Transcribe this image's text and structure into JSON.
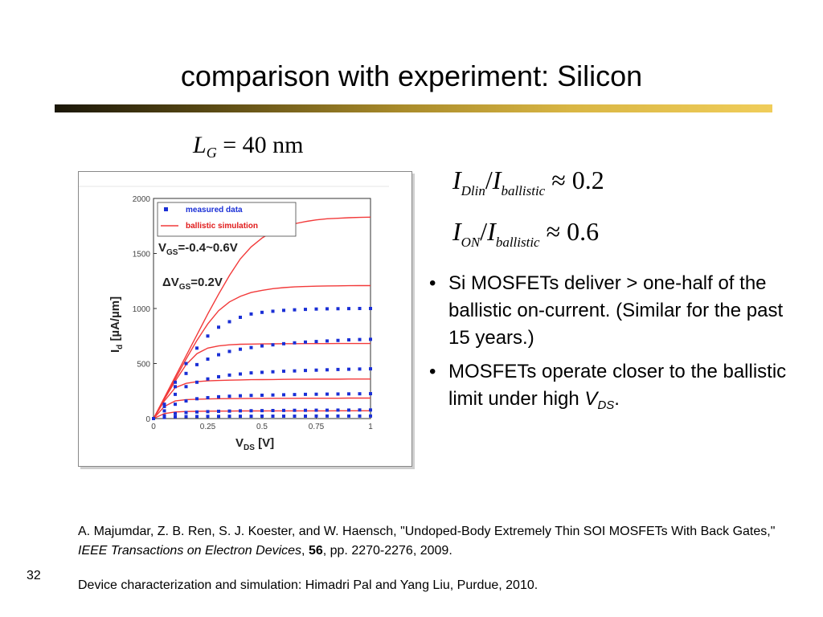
{
  "slide": {
    "title": "comparison with experiment: Silicon",
    "number": "32",
    "colors": {
      "title_bar_dark": "#1a1608",
      "title_bar_light": "#f0cd5a"
    }
  },
  "gate_length": {
    "symbol": "L",
    "subscript": "G",
    "equals": "=",
    "value": "40 nm"
  },
  "ratios": [
    {
      "num": "I",
      "num_sub": "Dlin",
      "slash": "/",
      "den": "I",
      "den_sub": "ballistic",
      "approx": "≈ 0.2"
    },
    {
      "num": "I",
      "num_sub": "ON",
      "slash": "/",
      "den": "I",
      "den_sub": "ballistic",
      "approx": "≈ 0.6"
    }
  ],
  "bullets": [
    {
      "marker": "•",
      "text": "Si MOSFETs deliver > one-half of the ballistic on-current. (Similar for the past 15 years.)"
    },
    {
      "marker": "•",
      "text": "MOSFETs operate closer to the ballistic limit under high ",
      "var": "V",
      "sub": "DS",
      "tail": "."
    }
  ],
  "reference": {
    "part1": "A. Majumdar, Z. B. Ren, S. J. Koester, and W. Haensch, \"Undoped-Body Extremely Thin SOI MOSFETs With Back Gates,\" ",
    "journal": "IEEE Transactions on Electron Devices",
    "sep": ", ",
    "volume": "56",
    "part2": ", pp. 2270-2276, 2009."
  },
  "credit": "Device characterization and simulation:  Himadri Pal and Yang Liu, Purdue, 2010.",
  "chart_data": {
    "type": "line",
    "xlabel": "V",
    "xlabel_sub": "DS",
    "xlabel_unit": " [V]",
    "ylabel": "I",
    "ylabel_sub": "d",
    "ylabel_unit": " [µA/µm]",
    "xlim": [
      0,
      1
    ],
    "ylim": [
      0,
      2000
    ],
    "xticks": [
      0,
      0.25,
      0.5,
      0.75,
      1
    ],
    "xtick_labels": [
      "0",
      "0.25",
      "0.5",
      "0.75",
      "1"
    ],
    "yticks": [
      0,
      500,
      1000,
      1500,
      2000
    ],
    "ytick_labels": [
      "0",
      "500",
      "1000",
      "1500",
      "2000"
    ],
    "legend": [
      "measured data",
      "ballistic simulation"
    ],
    "legend_position": "top-left",
    "annotations": [
      "V",
      "GS",
      "=-0.4~0.6V",
      "ΔV",
      "GS",
      "=0.2V"
    ],
    "colors": {
      "measured": "#1a2fd6",
      "simulation": "#f23a3a"
    },
    "series": [
      {
        "name": "measured data",
        "style": "dotted",
        "x": [
          0,
          0.05,
          0.1,
          0.15,
          0.2,
          0.25,
          0.3,
          0.35,
          0.4,
          0.45,
          0.5,
          0.55,
          0.6,
          0.65,
          0.7,
          0.75,
          0.8,
          0.85,
          0.9,
          0.95,
          1
        ],
        "curves": [
          [
            0,
            130,
            330,
            500,
            640,
            750,
            830,
            880,
            920,
            950,
            965,
            975,
            983,
            988,
            992,
            995,
            997,
            998,
            999,
            1000,
            1000
          ],
          [
            0,
            125,
            290,
            410,
            490,
            540,
            580,
            610,
            630,
            645,
            660,
            670,
            680,
            688,
            695,
            700,
            705,
            710,
            715,
            718,
            720
          ],
          [
            0,
            110,
            220,
            290,
            330,
            360,
            380,
            395,
            405,
            415,
            420,
            425,
            430,
            433,
            437,
            440,
            443,
            446,
            448,
            450,
            452
          ],
          [
            0,
            70,
            130,
            160,
            180,
            190,
            198,
            203,
            207,
            210,
            212,
            214,
            216,
            218,
            220,
            221,
            222,
            223,
            224,
            225,
            226
          ],
          [
            0,
            25,
            45,
            55,
            60,
            63,
            66,
            68,
            70,
            71,
            72,
            73,
            74,
            75,
            75,
            76,
            76,
            77,
            77,
            78,
            78
          ],
          [
            0,
            10,
            15,
            18,
            19,
            20,
            20,
            21,
            21,
            21,
            22,
            22,
            22,
            22,
            22,
            23,
            23,
            23,
            23,
            23,
            23
          ]
        ]
      },
      {
        "name": "ballistic simulation",
        "style": "solid",
        "x": [
          0,
          0.05,
          0.1,
          0.15,
          0.2,
          0.25,
          0.3,
          0.35,
          0.4,
          0.45,
          0.5,
          0.55,
          0.6,
          0.65,
          0.7,
          0.75,
          0.8,
          0.85,
          0.9,
          0.95,
          1
        ],
        "curves": [
          [
            0,
            190,
            380,
            570,
            760,
            950,
            1130,
            1300,
            1450,
            1560,
            1640,
            1700,
            1740,
            1770,
            1790,
            1805,
            1815,
            1820,
            1825,
            1828,
            1830
          ],
          [
            0,
            180,
            360,
            540,
            710,
            860,
            980,
            1060,
            1110,
            1145,
            1165,
            1180,
            1190,
            1196,
            1200,
            1203,
            1205,
            1206,
            1207,
            1208,
            1208
          ],
          [
            0,
            175,
            340,
            490,
            590,
            640,
            660,
            670,
            675,
            677,
            678,
            679,
            680,
            680,
            681,
            681,
            681,
            682,
            682,
            682,
            682
          ],
          [
            0,
            160,
            280,
            320,
            335,
            342,
            346,
            349,
            351,
            353,
            354,
            355,
            356,
            357,
            357,
            358,
            358,
            358,
            359,
            359,
            359
          ],
          [
            0,
            110,
            160,
            172,
            176,
            178,
            180,
            181,
            182,
            183,
            183,
            184,
            184,
            184,
            185,
            185,
            185,
            185,
            186,
            186,
            186
          ],
          [
            0,
            45,
            60,
            64,
            66,
            67,
            68,
            68,
            69,
            69,
            69,
            70,
            70,
            70,
            70,
            70,
            70,
            71,
            71,
            71,
            71
          ]
        ]
      }
    ]
  }
}
